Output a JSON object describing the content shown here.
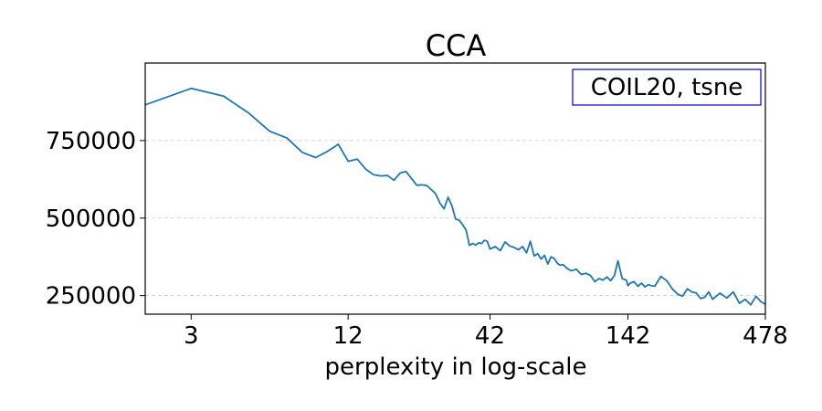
{
  "chart_data": {
    "type": "line",
    "title": "CCA",
    "xlabel": "perplexity in log-scale",
    "ylabel": "",
    "x_scale": "log",
    "xlim": [
      2,
      478
    ],
    "ylim": [
      190000,
      1000000
    ],
    "x_ticks": [
      3,
      12,
      42,
      142,
      478
    ],
    "x_tick_labels": [
      "3",
      "12",
      "42",
      "142",
      "478"
    ],
    "y_ticks": [
      250000,
      500000,
      750000
    ],
    "y_tick_labels": [
      "250000",
      "500000",
      "750000"
    ],
    "grid": "y-dashed",
    "annotation": "COIL20, tsne",
    "annotation_position": "top-right",
    "line_color": "#1f77b4",
    "series": [
      {
        "name": "",
        "x": [
          2,
          3,
          4,
          5,
          6,
          7,
          8,
          9,
          10,
          11,
          12,
          13,
          14,
          15,
          16,
          17,
          18,
          19,
          20,
          21,
          22,
          23,
          24,
          25,
          26,
          27,
          28,
          29,
          30,
          31,
          32,
          33,
          34,
          35,
          36,
          37,
          38,
          39,
          40,
          41,
          42,
          44,
          46,
          48,
          50,
          52,
          54,
          56,
          58,
          60,
          62,
          64,
          66,
          68,
          70,
          72,
          74,
          76,
          78,
          80,
          83,
          86,
          90,
          94,
          98,
          102,
          106,
          110,
          114,
          118,
          122,
          126,
          130,
          135,
          140,
          142,
          145,
          150,
          155,
          160,
          165,
          170,
          175,
          180,
          190,
          200,
          210,
          220,
          230,
          240,
          250,
          260,
          270,
          280,
          290,
          300,
          320,
          340,
          360,
          380,
          400,
          420,
          440,
          460,
          478
        ],
        "y": [
          865000,
          918000,
          893000,
          838000,
          780000,
          758000,
          712000,
          695000,
          715000,
          738000,
          683000,
          690000,
          658000,
          640000,
          636000,
          637000,
          622000,
          645000,
          650000,
          628000,
          606000,
          607000,
          605000,
          592000,
          578000,
          548000,
          530000,
          567000,
          540000,
          497000,
          493000,
          478000,
          462000,
          412000,
          418000,
          413000,
          420000,
          418000,
          428000,
          425000,
          400000,
          408000,
          395000,
          423000,
          410000,
          405000,
          398000,
          408000,
          388000,
          425000,
          378000,
          385000,
          368000,
          380000,
          352000,
          375000,
          370000,
          355000,
          348000,
          350000,
          338000,
          330000,
          335000,
          318000,
          322000,
          315000,
          295000,
          305000,
          300000,
          310000,
          298000,
          315000,
          362000,
          305000,
          300000,
          282000,
          290000,
          295000,
          280000,
          290000,
          278000,
          285000,
          282000,
          280000,
          312000,
          298000,
          272000,
          255000,
          248000,
          272000,
          262000,
          258000,
          240000,
          245000,
          262000,
          238000,
          258000,
          242000,
          262000,
          225000,
          238000,
          220000,
          248000,
          230000,
          222000
        ]
      }
    ]
  }
}
